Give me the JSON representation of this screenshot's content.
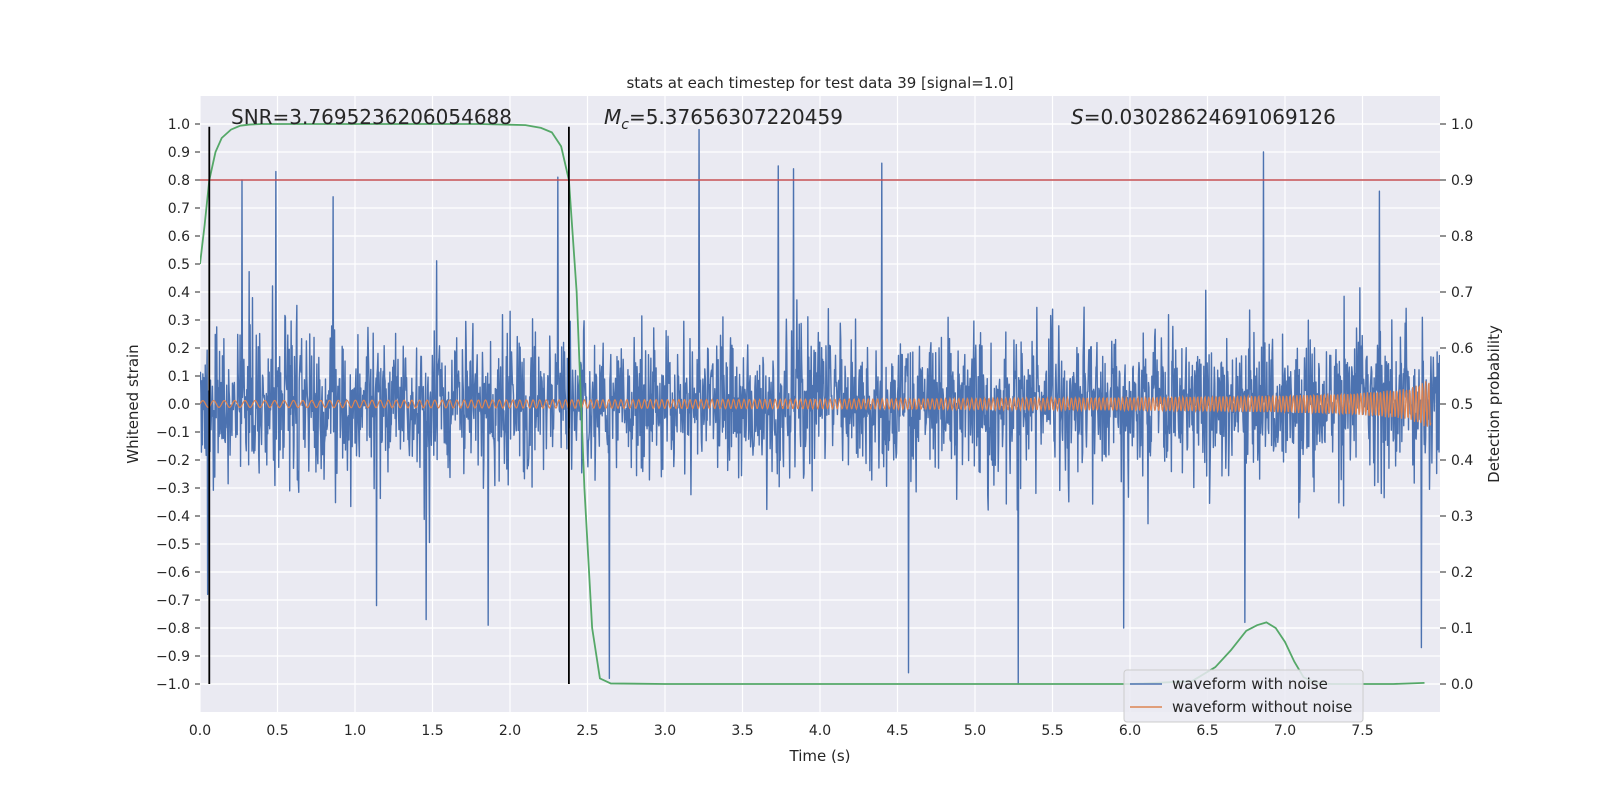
{
  "chart_data": {
    "type": "line",
    "title": "stats at each timestep for test data 39 [signal=1.0]",
    "xlabel": "Time (s)",
    "ylabel": "Whitened strain",
    "y2label": "Detection probability",
    "xlim": [
      0.0,
      8.0
    ],
    "ylim": [
      -1.1,
      1.1
    ],
    "y2lim": [
      -0.05,
      1.05
    ],
    "x_ticks": [
      0.0,
      0.5,
      1.0,
      1.5,
      2.0,
      2.5,
      3.0,
      3.5,
      4.0,
      4.5,
      5.0,
      5.5,
      6.0,
      6.5,
      7.0,
      7.5
    ],
    "x_tick_labels": [
      "0.0",
      "0.5",
      "1.0",
      "1.5",
      "2.0",
      "2.5",
      "3.0",
      "3.5",
      "4.0",
      "4.5",
      "5.0",
      "5.5",
      "6.0",
      "6.5",
      "7.0",
      "7.5"
    ],
    "y_ticks": [
      -1.0,
      -0.9,
      -0.8,
      -0.7,
      -0.6,
      -0.5,
      -0.4,
      -0.3,
      -0.2,
      -0.1,
      0.0,
      0.1,
      0.2,
      0.3,
      0.4,
      0.5,
      0.6,
      0.7,
      0.8,
      0.9,
      1.0
    ],
    "y_tick_labels": [
      "−1.0",
      "−0.9",
      "−0.8",
      "−0.7",
      "−0.6",
      "−0.5",
      "−0.4",
      "−0.3",
      "−0.2",
      "−0.1",
      "0.0",
      "0.1",
      "0.2",
      "0.3",
      "0.4",
      "0.5",
      "0.6",
      "0.7",
      "0.8",
      "0.9",
      "1.0"
    ],
    "y2_ticks": [
      0.0,
      0.1,
      0.2,
      0.3,
      0.4,
      0.5,
      0.6,
      0.7,
      0.8,
      0.9,
      1.0
    ],
    "y2_tick_labels": [
      "0.0",
      "0.1",
      "0.2",
      "0.3",
      "0.4",
      "0.5",
      "0.6",
      "0.7",
      "0.8",
      "0.9",
      "1.0"
    ],
    "grid": true,
    "legend_position": "lower-right",
    "annotations": {
      "snr_label": "SNR=3.7695236206054688",
      "mc_symbol": "M",
      "mc_sub": "c",
      "mc_value": "=5.37656307220459",
      "s_symbol": "S",
      "s_value": "=0.03028624691069126"
    },
    "series": [
      {
        "name": "waveform with noise",
        "color": "#4c72b0",
        "axis": "left",
        "envelope": {
          "sigma": 0.13,
          "clip": [
            -1.0,
            1.0
          ]
        },
        "spikes": [
          {
            "x": 0.27,
            "y": 0.8
          },
          {
            "x": 0.49,
            "y": 0.83
          },
          {
            "x": 0.86,
            "y": 0.74
          },
          {
            "x": 2.31,
            "y": 0.81
          },
          {
            "x": 3.22,
            "y": 0.98
          },
          {
            "x": 3.73,
            "y": 0.85
          },
          {
            "x": 3.83,
            "y": 0.84
          },
          {
            "x": 4.4,
            "y": 0.86
          },
          {
            "x": 6.86,
            "y": 0.9
          },
          {
            "x": 7.61,
            "y": 0.76
          },
          {
            "x": 0.05,
            "y": -0.68
          },
          {
            "x": 1.14,
            "y": -0.72
          },
          {
            "x": 1.46,
            "y": -0.77
          },
          {
            "x": 1.86,
            "y": -0.79
          },
          {
            "x": 2.64,
            "y": -0.98
          },
          {
            "x": 4.57,
            "y": -0.96
          },
          {
            "x": 5.28,
            "y": -1.0
          },
          {
            "x": 5.96,
            "y": -0.8
          },
          {
            "x": 6.74,
            "y": -0.78
          },
          {
            "x": 7.88,
            "y": -0.87
          }
        ]
      },
      {
        "name": "waveform without noise",
        "color": "#dd8452",
        "axis": "left",
        "amplitude": [
          [
            0.0,
            0.012
          ],
          [
            4.0,
            0.017
          ],
          [
            6.0,
            0.023
          ],
          [
            7.0,
            0.03
          ],
          [
            7.5,
            0.04
          ],
          [
            7.8,
            0.055
          ],
          [
            7.92,
            0.085
          ]
        ],
        "end_x": 7.94
      },
      {
        "name": "detection probability",
        "color": "#55a868",
        "axis": "right",
        "x": [
          0.0,
          0.03,
          0.06,
          0.1,
          0.14,
          0.2,
          0.26,
          0.32,
          0.4,
          0.5,
          0.6,
          0.8,
          1.0,
          1.4,
          1.8,
          2.1,
          2.2,
          2.27,
          2.33,
          2.38,
          2.43,
          2.48,
          2.53,
          2.58,
          2.65,
          3.0,
          4.0,
          5.0,
          6.0,
          6.4,
          6.55,
          6.65,
          6.75,
          6.82,
          6.88,
          6.94,
          7.0,
          7.06,
          7.12,
          7.2,
          7.3,
          7.5,
          7.7,
          7.9
        ],
        "y": [
          0.75,
          0.82,
          0.9,
          0.95,
          0.975,
          0.99,
          0.997,
          0.999,
          1.0,
          1.0,
          1.0,
          1.0,
          1.0,
          1.0,
          1.0,
          0.998,
          0.993,
          0.985,
          0.96,
          0.9,
          0.7,
          0.35,
          0.1,
          0.01,
          0.001,
          0.0,
          0.0,
          0.0,
          0.0,
          0.005,
          0.03,
          0.06,
          0.095,
          0.105,
          0.11,
          0.1,
          0.075,
          0.04,
          0.012,
          0.002,
          0.0,
          0.0,
          0.0,
          0.002
        ]
      }
    ],
    "threshold": {
      "axis": "right",
      "y": 0.9,
      "color": "#c44e52"
    },
    "vlines": [
      {
        "x": 0.06,
        "color": "#000000"
      },
      {
        "x": 2.38,
        "color": "#000000"
      }
    ],
    "legend": [
      {
        "label": "waveform with noise",
        "color": "#4c72b0"
      },
      {
        "label": "waveform without noise",
        "color": "#dd8452"
      }
    ]
  }
}
